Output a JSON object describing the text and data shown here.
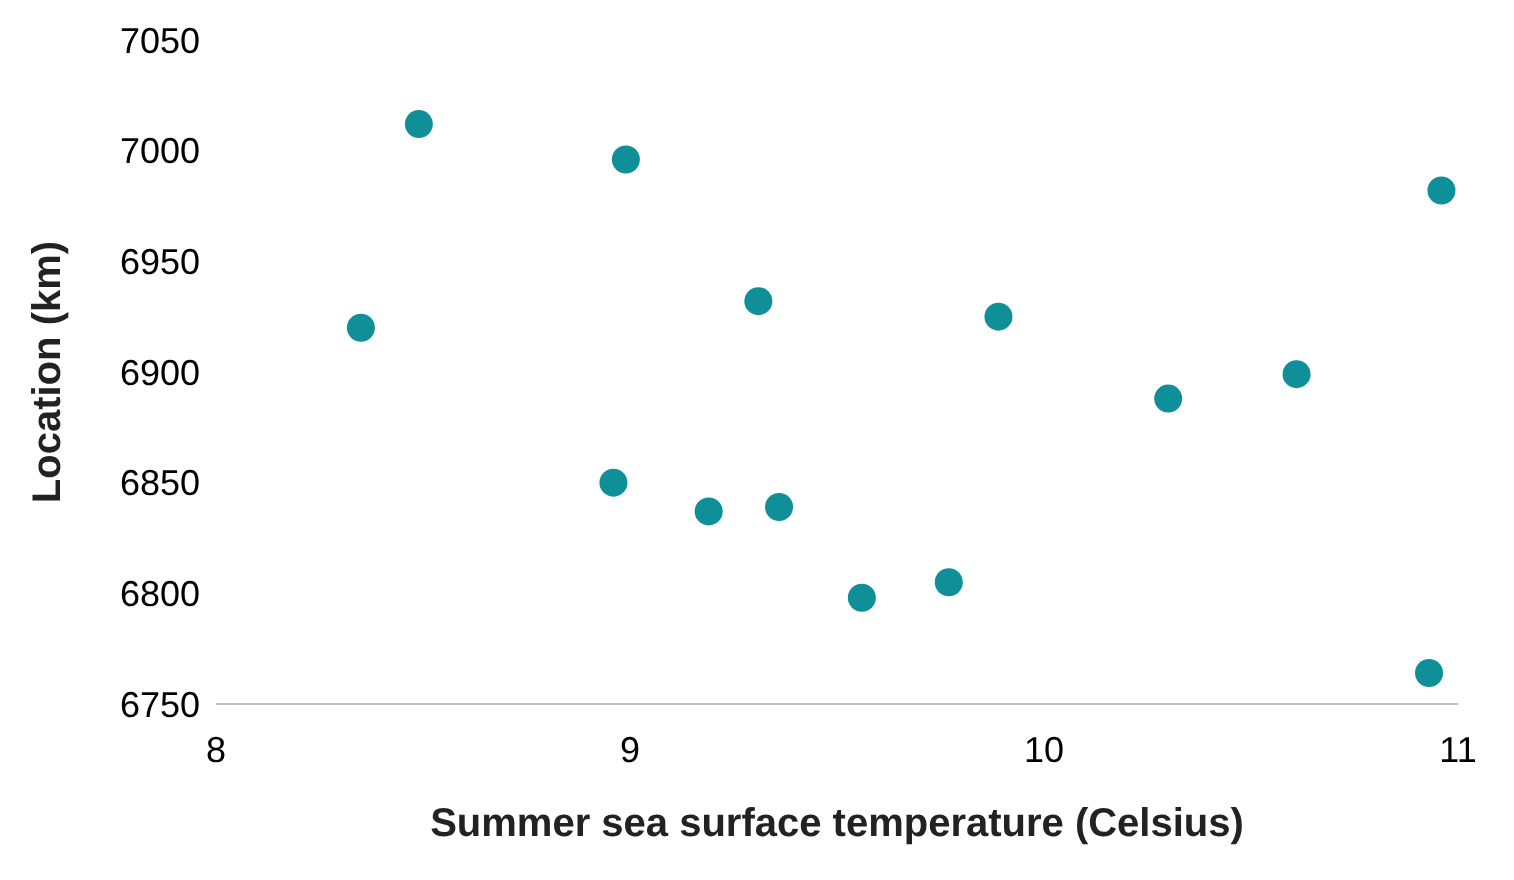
{
  "chart_data": {
    "type": "scatter",
    "xlabel": "Summer sea surface temperature (Celsius)",
    "ylabel": "Location (km)",
    "x": [
      8.35,
      8.49,
      8.99,
      8.96,
      9.19,
      9.31,
      9.36,
      9.56,
      9.77,
      9.89,
      10.3,
      10.61,
      10.96,
      10.93
    ],
    "series": [
      {
        "color": "#0f8f97",
        "values": [
          6920,
          7012,
          6996,
          6850,
          6837,
          6932,
          6839,
          6798,
          6805,
          6925,
          6888,
          6899,
          6982,
          6764
        ]
      }
    ],
    "xlim": [
      8,
      11
    ],
    "xticks": [
      8,
      9,
      10,
      11
    ],
    "ylim": [
      6750,
      7050
    ],
    "yticks": [
      6750,
      6800,
      6850,
      6900,
      6950,
      7000,
      7050
    ],
    "grid": false,
    "legend": false,
    "marker": "circle"
  }
}
